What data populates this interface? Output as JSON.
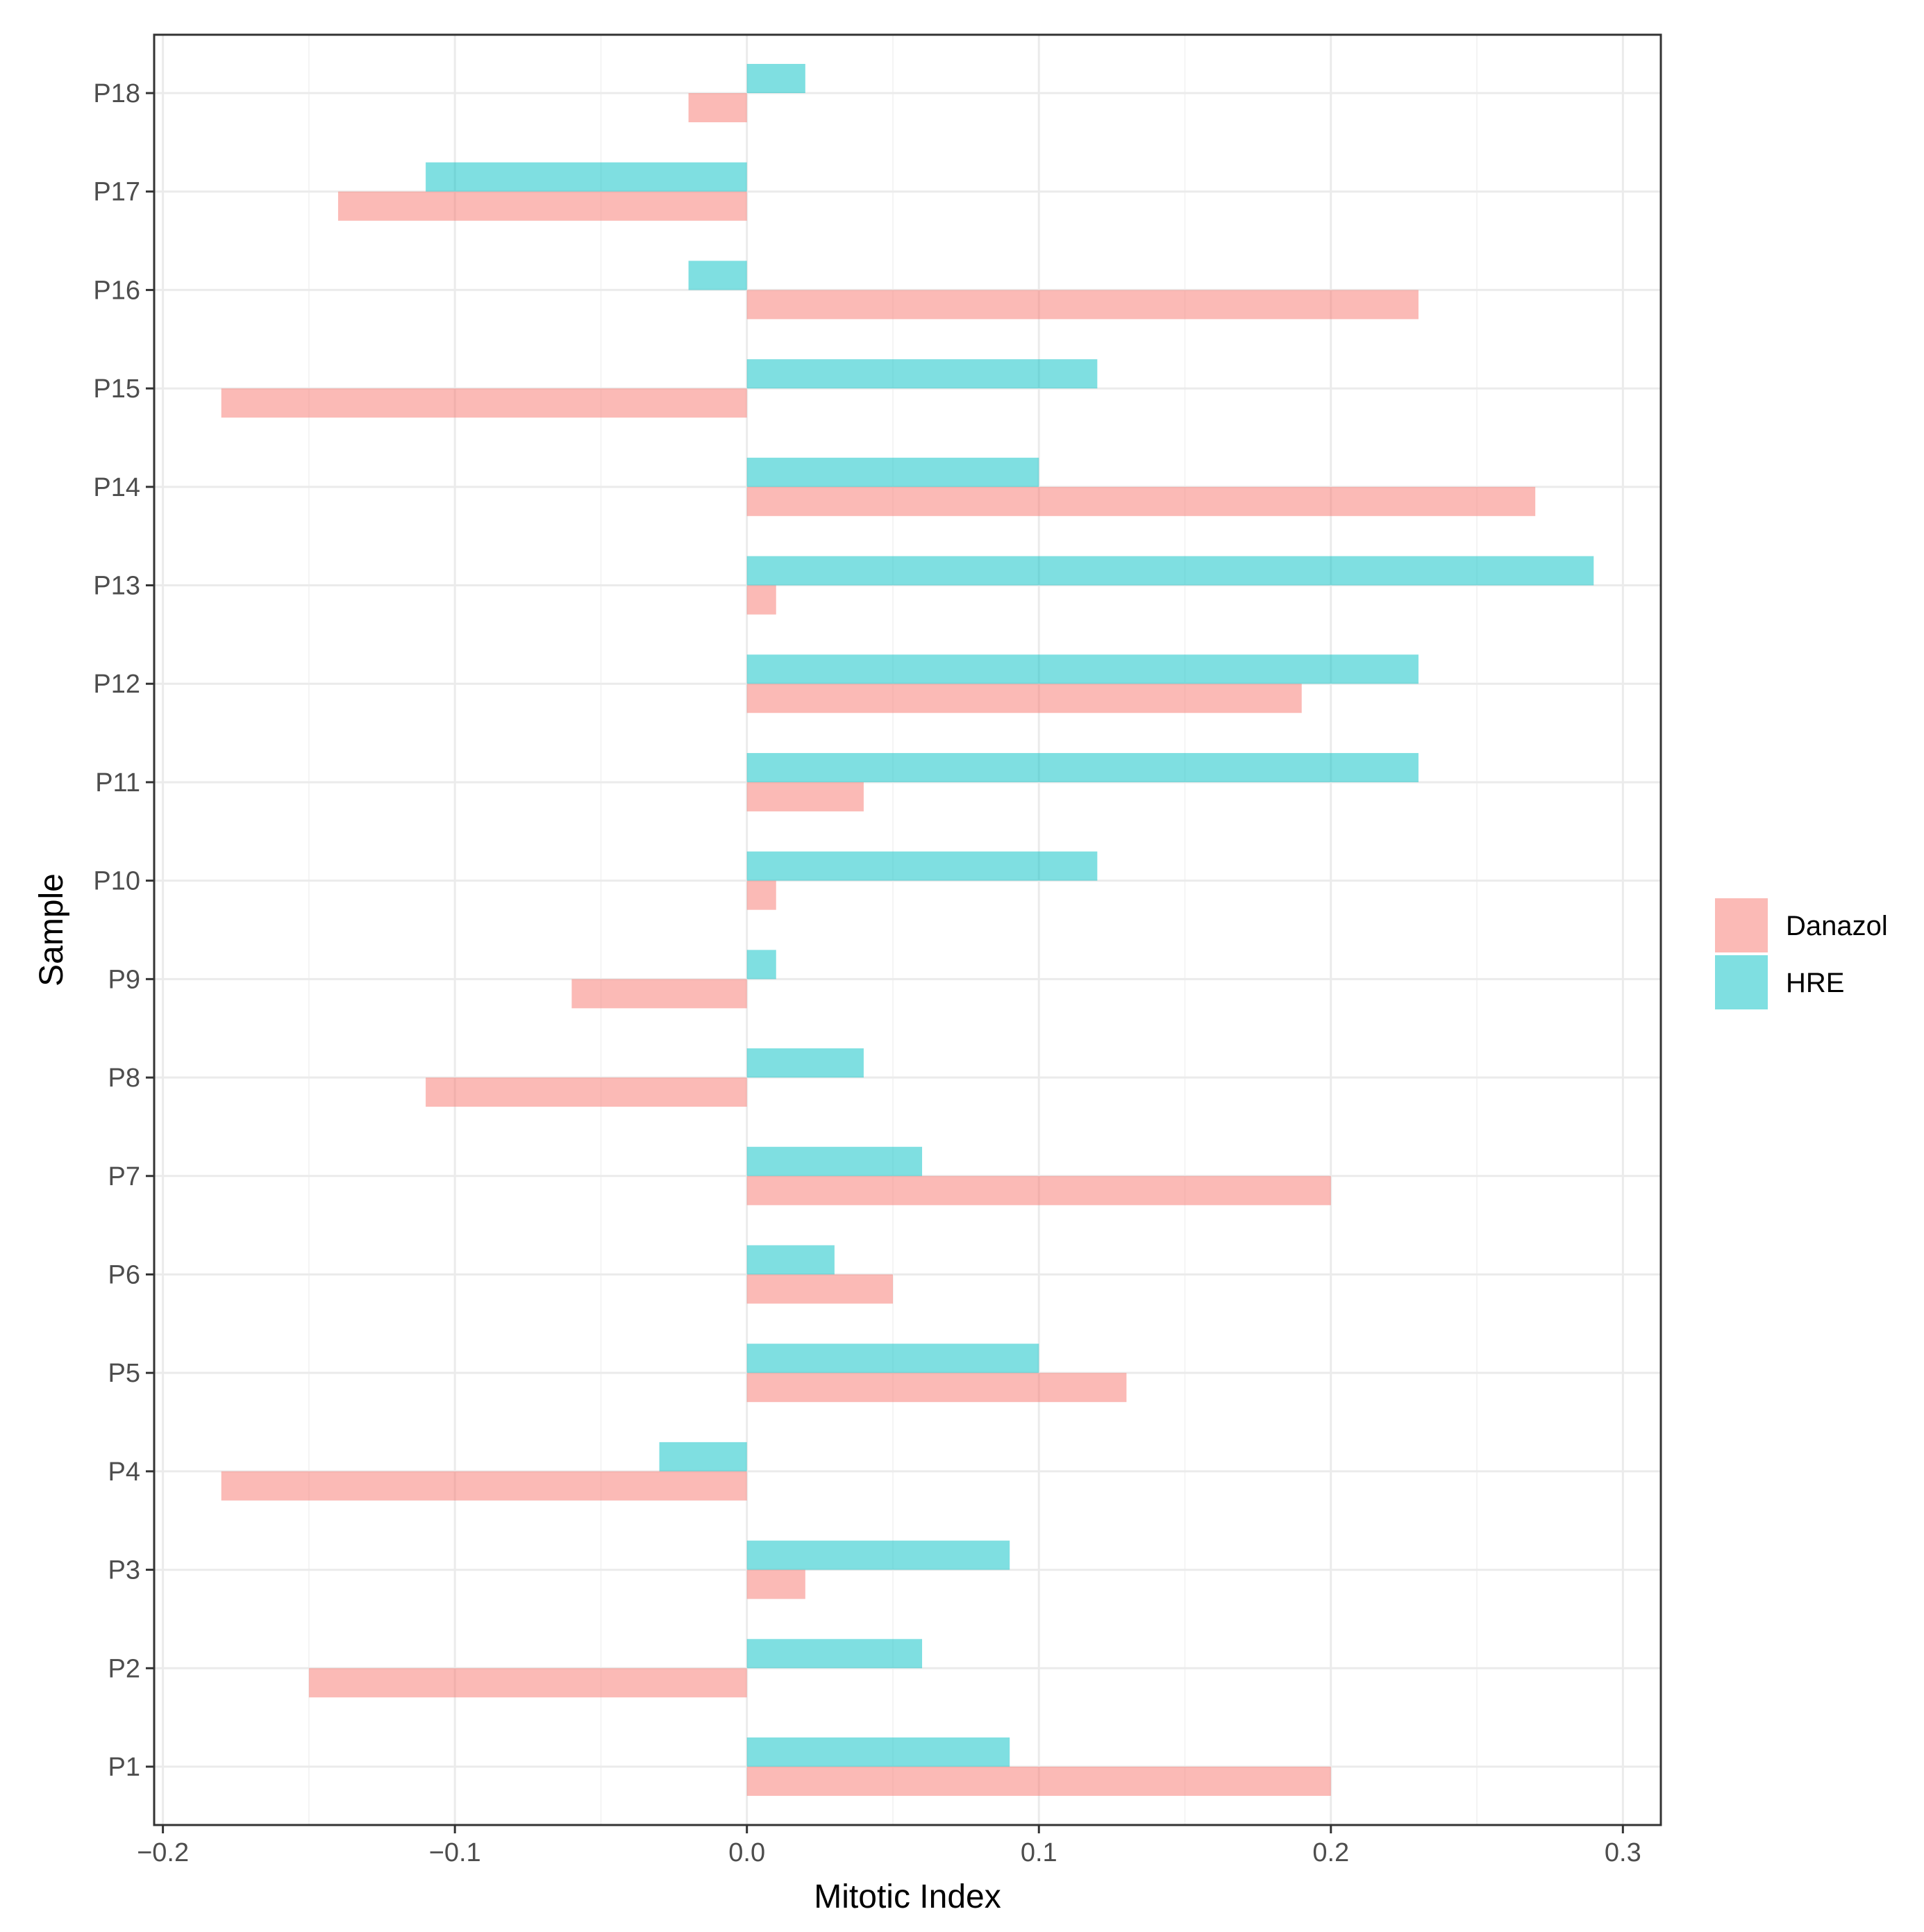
{
  "chart_data": {
    "type": "bar",
    "orientation": "horizontal",
    "xlabel": "Mitotic Index",
    "ylabel": "Sample",
    "xlim": [
      -0.203,
      0.313
    ],
    "xticks": [
      -0.2,
      -0.1,
      0.0,
      0.1,
      0.2,
      0.3
    ],
    "xtick_labels": [
      "−0.2",
      "−0.1",
      "0.0",
      "0.1",
      "0.2",
      "0.3"
    ],
    "categories": [
      "P1",
      "P2",
      "P3",
      "P4",
      "P5",
      "P6",
      "P7",
      "P8",
      "P9",
      "P10",
      "P11",
      "P12",
      "P13",
      "P14",
      "P15",
      "P16",
      "P17",
      "P18"
    ],
    "series": [
      {
        "name": "Danazol",
        "color": "#F8766D",
        "values": [
          0.2,
          -0.15,
          0.02,
          -0.18,
          0.13,
          0.05,
          0.2,
          -0.11,
          -0.06,
          0.01,
          0.04,
          0.19,
          0.01,
          0.27,
          -0.18,
          0.23,
          -0.14,
          -0.02
        ]
      },
      {
        "name": "HRE",
        "color": "#00BFC4",
        "values": [
          0.09,
          0.06,
          0.09,
          -0.03,
          0.1,
          0.03,
          0.06,
          0.04,
          0.01,
          0.12,
          0.23,
          0.23,
          0.29,
          0.1,
          0.12,
          -0.02,
          -0.11,
          0.02
        ]
      }
    ],
    "legend_position": "right",
    "grid": true,
    "theme": "bw"
  }
}
